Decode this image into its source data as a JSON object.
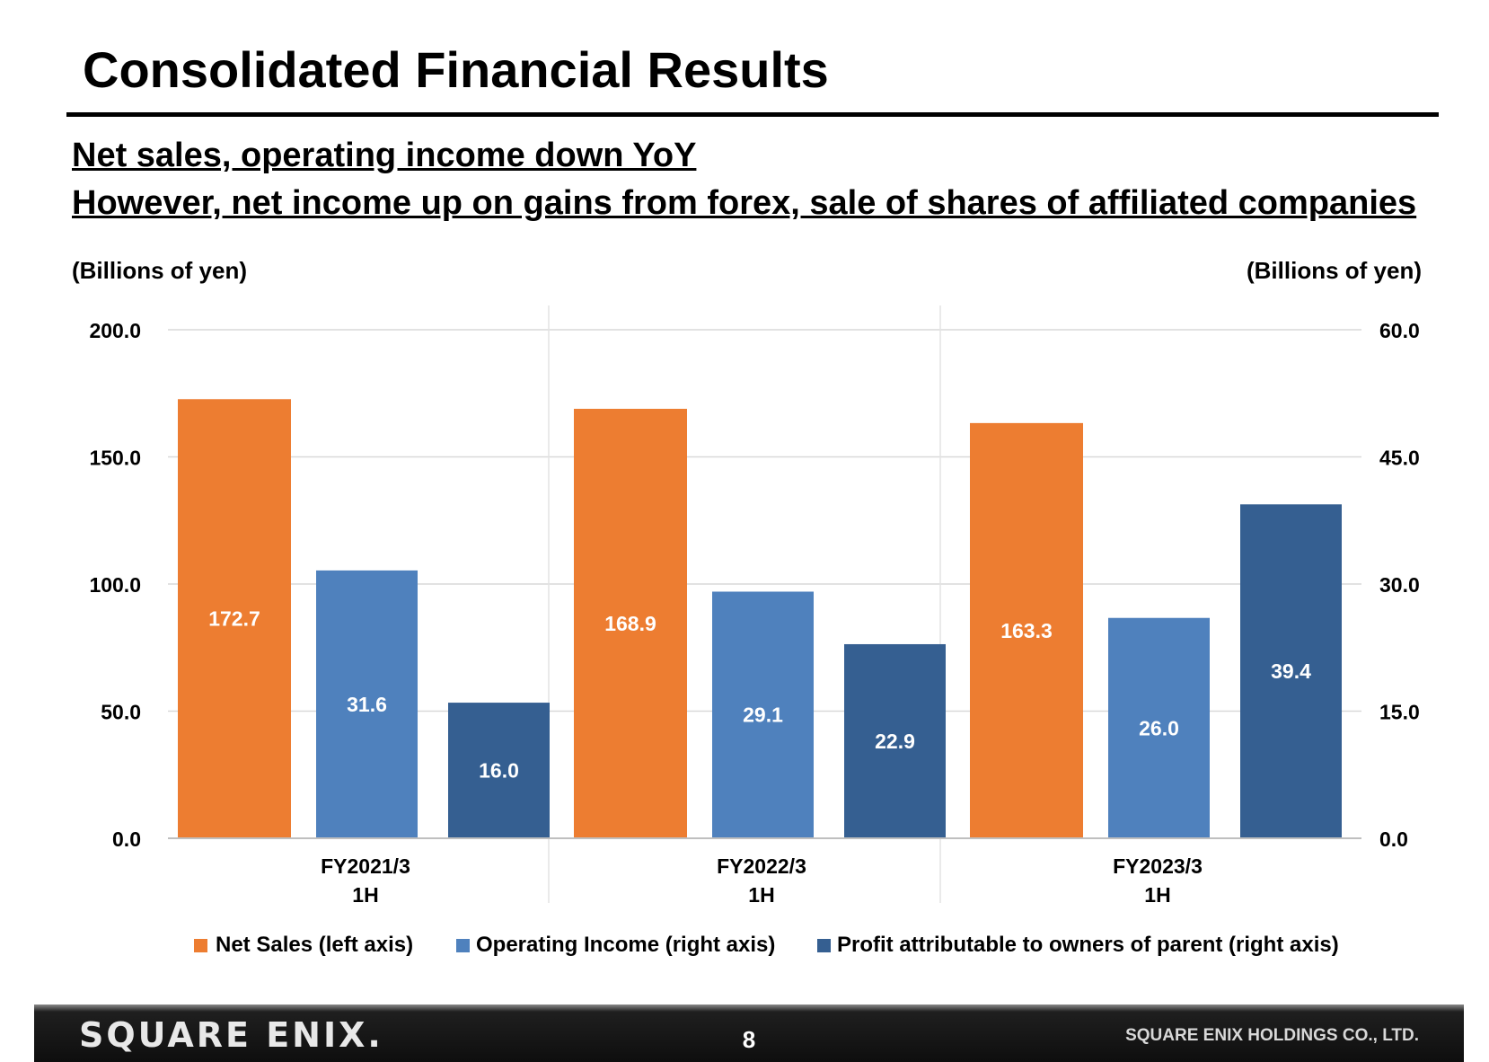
{
  "page": {
    "title": "Consolidated Financial Results",
    "headline_1": "Net sales, operating income down YoY",
    "headline_2": "However, net income up on gains from forex, sale of  shares of affiliated companies",
    "left_unit": "(Billions of yen)",
    "right_unit": "(Billions of yen)"
  },
  "chart_data": {
    "type": "bar",
    "categories": [
      [
        "FY2021/3",
        "1H"
      ],
      [
        "FY2022/3",
        "1H"
      ],
      [
        "FY2023/3",
        "1H"
      ]
    ],
    "series": [
      {
        "name": "Net Sales (left axis)",
        "axis": "left",
        "values": [
          172.7,
          168.9,
          163.3
        ],
        "color": "#ED7D31",
        "labels": [
          "172.7",
          "168.9",
          "163.3"
        ]
      },
      {
        "name": "Operating Income (right axis)",
        "axis": "right",
        "values": [
          31.6,
          29.1,
          26.0
        ],
        "color": "#4F81BD",
        "labels": [
          "31.6",
          "29.1",
          "26.0"
        ]
      },
      {
        "name": "Profit attributable to owners of parent (right axis)",
        "axis": "right",
        "values": [
          16.0,
          22.9,
          39.4
        ],
        "color": "#355F91",
        "labels": [
          "16.0",
          "22.9",
          "39.4"
        ]
      }
    ],
    "y_left": {
      "label": "(Billions of yen)",
      "range": [
        0,
        200
      ],
      "ticks": [
        "0.0",
        "50.0",
        "100.0",
        "150.0",
        "200.0"
      ]
    },
    "y_right": {
      "label": "(Billions of yen)",
      "range": [
        0,
        60
      ],
      "ticks": [
        "0.0",
        "15.0",
        "30.0",
        "45.0",
        "60.0"
      ]
    },
    "grid": true,
    "legend_position": "bottom"
  },
  "footer": {
    "logo": "SQUARE ENIX.",
    "page_number": "8",
    "company": "SQUARE ENIX HOLDINGS CO., LTD."
  }
}
